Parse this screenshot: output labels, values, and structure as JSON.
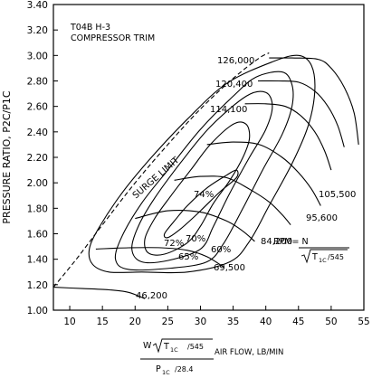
{
  "chart_data": {
    "type": "line",
    "title_lines": [
      "T04B H-3",
      "COMPRESSOR TRIM"
    ],
    "ylabel": "PRESSURE RATIO, P2C/P1C",
    "xlabel": {
      "w": "W",
      "sqrt_inner": "T",
      "sqrt_sub": "1C",
      "sqrt_div": "/545",
      "suffix": "AIR FLOW, LB/MIN",
      "den": "P",
      "den_sub": "1C",
      "den_div": "/28.4"
    },
    "rpm_label": {
      "text": "RPM= N",
      "sqrt_inner": "T",
      "sqrt_sub": "1C",
      "sqrt_div": "/545"
    },
    "surge_label": "SURGE LIMIT",
    "xlim": [
      7.5,
      55
    ],
    "ylim": [
      1.0,
      3.4
    ],
    "x_ticks": [
      10,
      15,
      20,
      25,
      30,
      35,
      40,
      45,
      50,
      55
    ],
    "x_tick_labels": [
      "10",
      "15",
      "20",
      "25",
      "30",
      "35",
      "40",
      "45",
      "50",
      "55"
    ],
    "y_ticks": [
      1.0,
      1.2,
      1.4,
      1.6,
      1.8,
      2.0,
      2.2,
      2.4,
      2.6,
      2.8,
      3.0,
      3.2,
      3.4
    ],
    "y_tick_labels": [
      "1.00",
      "1.20",
      "1.40",
      "1.60",
      "1.80",
      "2.00",
      "2.20",
      "2.40",
      "2.60",
      "2.80",
      "3.00",
      "3.20",
      "3.40"
    ],
    "grid": false,
    "surge_line": [
      [
        7.5,
        1.18
      ],
      [
        11,
        1.4
      ],
      [
        15,
        1.67
      ],
      [
        20,
        2.0
      ],
      [
        25,
        2.3
      ],
      [
        30,
        2.58
      ],
      [
        35,
        2.82
      ],
      [
        39,
        2.98
      ],
      [
        40.5,
        3.02
      ]
    ],
    "speed_lines": [
      {
        "label": "126,000",
        "points": [
          [
            40.5,
            2.98
          ],
          [
            44,
            2.98
          ],
          [
            48,
            2.97
          ],
          [
            50,
            2.9
          ],
          [
            52,
            2.75
          ],
          [
            53.5,
            2.55
          ],
          [
            54.2,
            2.3
          ]
        ]
      },
      {
        "label": "120,400",
        "points": [
          [
            38.8,
            2.8
          ],
          [
            42,
            2.8
          ],
          [
            45,
            2.79
          ],
          [
            47.5,
            2.72
          ],
          [
            49.5,
            2.6
          ],
          [
            51,
            2.45
          ],
          [
            52,
            2.28
          ]
        ]
      },
      {
        "label": "114,100",
        "points": [
          [
            36.8,
            2.62
          ],
          [
            40,
            2.62
          ],
          [
            43,
            2.6
          ],
          [
            45.5,
            2.52
          ],
          [
            47.5,
            2.4
          ],
          [
            49,
            2.25
          ],
          [
            50,
            2.1
          ]
        ]
      },
      {
        "label": "105,500",
        "points": [
          [
            31,
            2.3
          ],
          [
            35,
            2.32
          ],
          [
            39,
            2.3
          ],
          [
            42.5,
            2.2
          ],
          [
            45,
            2.08
          ],
          [
            47,
            1.95
          ],
          [
            48.4,
            1.82
          ]
        ]
      },
      {
        "label": "95,600",
        "points": [
          [
            26,
            2.02
          ],
          [
            30,
            2.05
          ],
          [
            34,
            2.04
          ],
          [
            37.5,
            1.95
          ],
          [
            40.5,
            1.85
          ],
          [
            42.5,
            1.75
          ],
          [
            43.8,
            1.67
          ]
        ]
      },
      {
        "label": "84,200",
        "points": [
          [
            20,
            1.72
          ],
          [
            25,
            1.78
          ],
          [
            30,
            1.77
          ],
          [
            34,
            1.7
          ],
          [
            36.5,
            1.62
          ],
          [
            38.3,
            1.54
          ]
        ]
      },
      {
        "label": "69,500",
        "points": [
          [
            14,
            1.48
          ],
          [
            19,
            1.49
          ],
          [
            24,
            1.49
          ],
          [
            28,
            1.47
          ],
          [
            31,
            1.42
          ],
          [
            33.5,
            1.34
          ]
        ]
      },
      {
        "label": "46,200",
        "points": [
          [
            7.5,
            1.18
          ],
          [
            12,
            1.17
          ],
          [
            16,
            1.16
          ],
          [
            19,
            1.14
          ],
          [
            21.5,
            1.09
          ]
        ]
      }
    ],
    "efficiency_islands": [
      {
        "label": "74%",
        "points": [
          [
            34,
            2.06
          ],
          [
            35.5,
            2.1
          ],
          [
            35.5,
            2.04
          ],
          [
            33,
            1.93
          ],
          [
            30,
            1.78
          ],
          [
            27,
            1.64
          ],
          [
            25,
            1.57
          ],
          [
            24.5,
            1.6
          ],
          [
            26,
            1.7
          ],
          [
            28,
            1.82
          ],
          [
            31,
            1.96
          ],
          [
            34,
            2.06
          ]
        ]
      },
      {
        "label": "72%",
        "points": [
          [
            35,
            2.46
          ],
          [
            37,
            2.46
          ],
          [
            37.5,
            2.35
          ],
          [
            36.5,
            2.2
          ],
          [
            34.5,
            2.02
          ],
          [
            32,
            1.84
          ],
          [
            30,
            1.66
          ],
          [
            28,
            1.53
          ],
          [
            24.5,
            1.44
          ],
          [
            22,
            1.45
          ],
          [
            21.5,
            1.56
          ],
          [
            23,
            1.72
          ],
          [
            25.5,
            1.9
          ],
          [
            28.5,
            2.1
          ],
          [
            31.5,
            2.3
          ],
          [
            35,
            2.46
          ]
        ]
      },
      {
        "label": "70%",
        "points": [
          [
            37,
            2.68
          ],
          [
            40,
            2.71
          ],
          [
            41,
            2.6
          ],
          [
            40,
            2.42
          ],
          [
            37.5,
            2.2
          ],
          [
            34.5,
            1.92
          ],
          [
            32,
            1.66
          ],
          [
            30,
            1.48
          ],
          [
            25,
            1.39
          ],
          [
            21,
            1.38
          ],
          [
            19.5,
            1.48
          ],
          [
            20.5,
            1.66
          ],
          [
            23,
            1.88
          ],
          [
            27,
            2.16
          ],
          [
            31.5,
            2.44
          ],
          [
            37,
            2.68
          ]
        ]
      },
      {
        "label": "65%",
        "points": [
          [
            38.5,
            2.83
          ],
          [
            42.5,
            2.87
          ],
          [
            44,
            2.77
          ],
          [
            44,
            2.6
          ],
          [
            42.5,
            2.38
          ],
          [
            39.5,
            2.1
          ],
          [
            36.5,
            1.8
          ],
          [
            33.5,
            1.52
          ],
          [
            31,
            1.38
          ],
          [
            25.5,
            1.33
          ],
          [
            19,
            1.32
          ],
          [
            17,
            1.4
          ],
          [
            18,
            1.58
          ],
          [
            21,
            1.84
          ],
          [
            25,
            2.1
          ],
          [
            30,
            2.42
          ],
          [
            35,
            2.68
          ],
          [
            38.5,
            2.83
          ]
        ]
      },
      {
        "label": "60%",
        "points": [
          [
            41,
            2.95
          ],
          [
            45,
            3.0
          ],
          [
            47,
            2.92
          ],
          [
            47.5,
            2.72
          ],
          [
            46.5,
            2.45
          ],
          [
            44,
            2.15
          ],
          [
            40.5,
            1.82
          ],
          [
            37.5,
            1.54
          ],
          [
            34.5,
            1.38
          ],
          [
            28,
            1.3
          ],
          [
            21,
            1.3
          ],
          [
            16,
            1.3
          ],
          [
            13.5,
            1.36
          ],
          [
            13,
            1.48
          ],
          [
            14.5,
            1.65
          ],
          [
            18,
            1.92
          ],
          [
            22.5,
            2.2
          ],
          [
            28,
            2.5
          ],
          [
            34,
            2.78
          ],
          [
            41,
            2.95
          ]
        ]
      }
    ]
  }
}
